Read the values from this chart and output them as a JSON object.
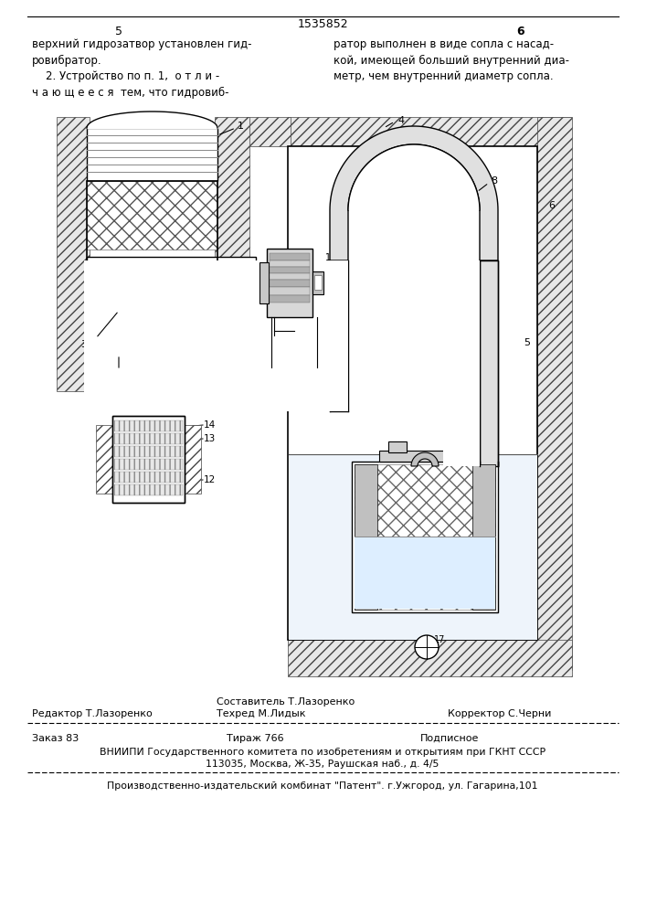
{
  "patent_number": "1535852",
  "page_left": "5",
  "page_right": "6",
  "text_left": "верхний гидрозатвор установлен гид-\nровибратор.\n    2. Устройство по п. 1,  о т л и -\nч а ю щ е е с я  тем, что гидровиб-",
  "text_right": "ратор выполнен в виде сопла с насад-\nкой, имеющей больший внутренний диа-\nметр, чем внутренний диаметр сопла.",
  "footer_line1_left": "Редактор Т.Лазоренко",
  "footer_line1_center_top": "Составитель Т.Лазоренко",
  "footer_line1_center_bot": "Техред М.Лидык",
  "footer_line1_right": "Корректор С.Черни",
  "footer_zakas": "Заказ 83",
  "footer_tiraz": "Тираж 766",
  "footer_podpisnoe": "Подписное",
  "footer_vniip": "ВНИИПИ Государственного комитета по изобретениям и открытиям при ГКНТ СССР",
  "footer_address": "113035, Москва, Ж-35, Раушская наб., д. 4/5",
  "footer_patent": "Производственно-издательский комбинат \"Патент\". г.Ужгород, ул. Гагарина,101",
  "bg_color": "#ffffff",
  "line_color": "#000000",
  "hatch_color": "#444444"
}
